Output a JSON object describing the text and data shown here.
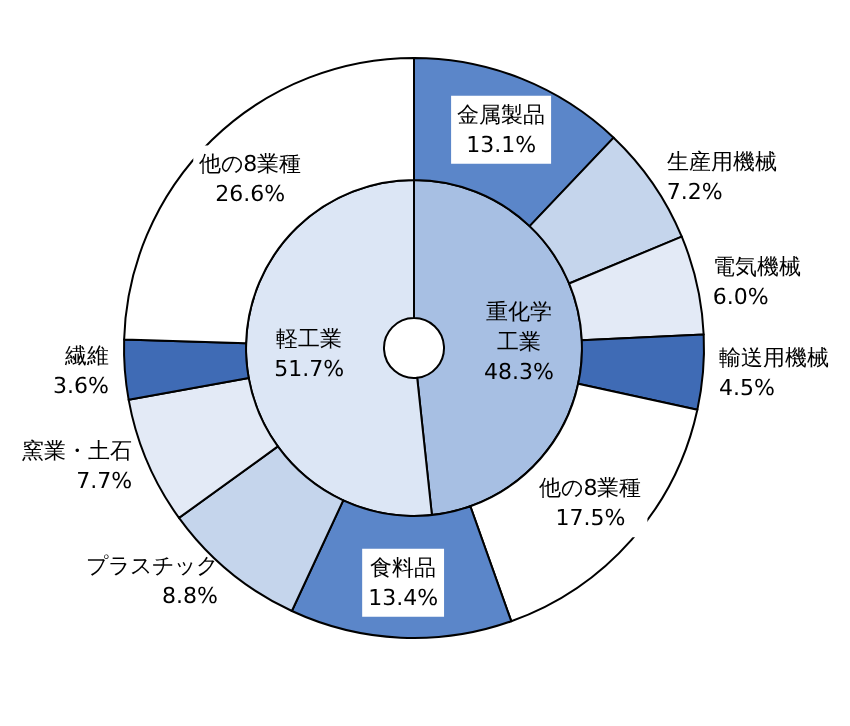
{
  "chart_data": [
    {
      "type": "donut",
      "categories": [
        "重化学工業",
        "軽工業"
      ],
      "values": [
        48.3,
        51.7
      ],
      "value_labels": [
        "48.3%",
        "51.7%"
      ],
      "colors": [
        "#a7bfe3",
        "#dce6f5"
      ]
    },
    {
      "type": "donut",
      "categories": [
        "金属製品",
        "生産用機械",
        "電気機械",
        "輸送用機械",
        "他の8業種",
        "食料品",
        "プラスチック",
        "窯業・土石",
        "繊維",
        "他の8業種"
      ],
      "values": [
        13.1,
        7.2,
        6.0,
        4.5,
        17.5,
        13.4,
        8.8,
        7.7,
        3.6,
        26.6
      ],
      "value_labels": [
        "13.1%",
        "7.2%",
        "6.0%",
        "4.5%",
        "17.5%",
        "13.4%",
        "8.8%",
        "7.7%",
        "3.6%",
        "26.6%"
      ],
      "colors": [
        "#5b86c9",
        "#c5d5ec",
        "#e3eaf6",
        "#3f6bb5",
        "#ffffff",
        "#5b86c9",
        "#c5d5ec",
        "#e3eaf6",
        "#3f6bb5",
        "#ffffff"
      ]
    }
  ]
}
